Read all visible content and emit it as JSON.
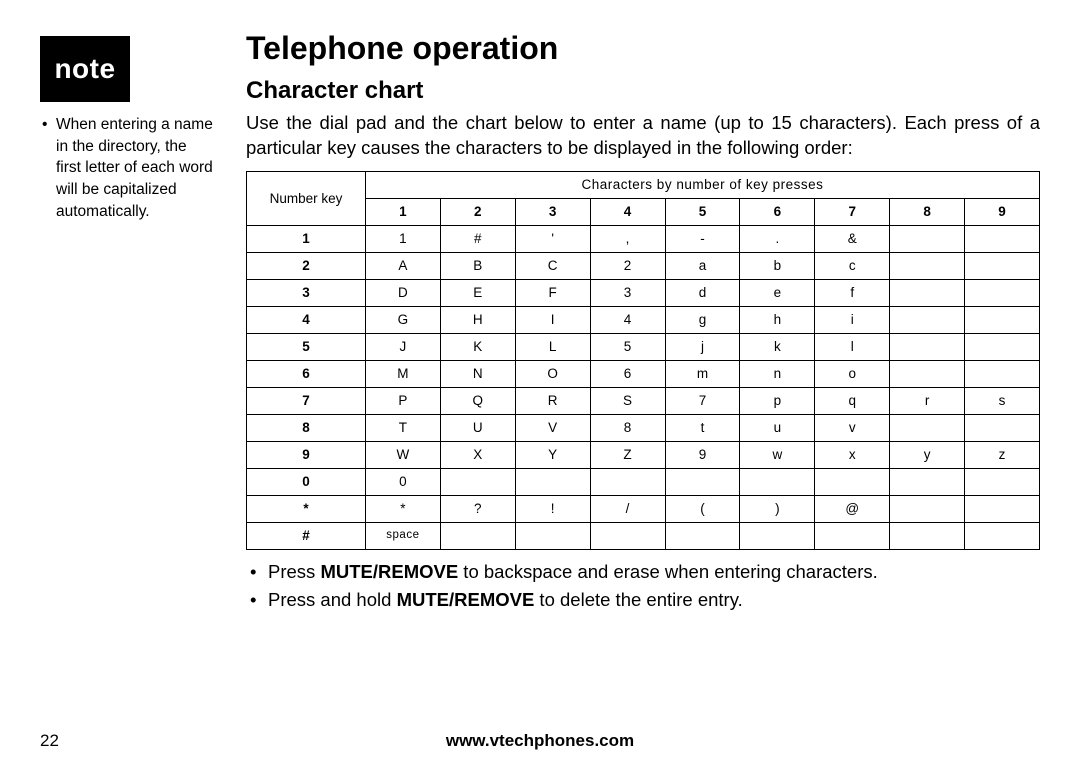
{
  "sidebar": {
    "badge_label": "note",
    "note_text": "When entering a name in the directory, the first letter of each word will be capitalized automatically."
  },
  "main": {
    "title": "Telephone operation",
    "subtitle": "Character chart",
    "intro": "Use the dial pad and the chart below to enter a name (up to 15 characters). Each press of a particular key causes the characters to be displayed in the following order:"
  },
  "table": {
    "corner_label": "Number key",
    "spanning_header": "Characters by number of key presses",
    "press_headers": [
      "1",
      "2",
      "3",
      "4",
      "5",
      "6",
      "7",
      "8",
      "9"
    ],
    "rows": [
      {
        "key": "1",
        "cells": [
          "1",
          "#",
          "'",
          ",",
          "-",
          ".",
          "&",
          "",
          ""
        ]
      },
      {
        "key": "2",
        "cells": [
          "A",
          "B",
          "C",
          "2",
          "a",
          "b",
          "c",
          "",
          ""
        ]
      },
      {
        "key": "3",
        "cells": [
          "D",
          "E",
          "F",
          "3",
          "d",
          "e",
          "f",
          "",
          ""
        ]
      },
      {
        "key": "4",
        "cells": [
          "G",
          "H",
          "I",
          "4",
          "g",
          "h",
          "i",
          "",
          ""
        ]
      },
      {
        "key": "5",
        "cells": [
          "J",
          "K",
          "L",
          "5",
          "j",
          "k",
          "l",
          "",
          ""
        ]
      },
      {
        "key": "6",
        "cells": [
          "M",
          "N",
          "O",
          "6",
          "m",
          "n",
          "o",
          "",
          ""
        ]
      },
      {
        "key": "7",
        "cells": [
          "P",
          "Q",
          "R",
          "S",
          "7",
          "p",
          "q",
          "r",
          "s"
        ]
      },
      {
        "key": "8",
        "cells": [
          "T",
          "U",
          "V",
          "8",
          "t",
          "u",
          "v",
          "",
          ""
        ]
      },
      {
        "key": "9",
        "cells": [
          "W",
          "X",
          "Y",
          "Z",
          "9",
          "w",
          "x",
          "y",
          "z"
        ]
      },
      {
        "key": "0",
        "cells": [
          "0",
          "",
          "",
          "",
          "",
          "",
          "",
          "",
          ""
        ]
      },
      {
        "key": "*",
        "cells": [
          "*",
          "?",
          "!",
          "/",
          "(",
          ")",
          "@",
          "",
          ""
        ]
      },
      {
        "key": "#",
        "cells": [
          "space",
          "",
          "",
          "",
          "",
          "",
          "",
          "",
          ""
        ]
      }
    ],
    "border_color": "#000000",
    "cell_fontsize": 13.5
  },
  "bullets": {
    "b1_pre": "Press ",
    "b1_bold": "MUTE/REMOVE",
    "b1_post": " to backspace and erase when entering characters.",
    "b2_pre": "Press and hold ",
    "b2_bold": "MUTE/REMOVE",
    "b2_post": " to delete the entire entry."
  },
  "footer": {
    "page_number": "22",
    "url": "www.vtechphones.com"
  },
  "colors": {
    "text": "#000000",
    "background": "#ffffff",
    "badge_bg": "#000000",
    "badge_fg": "#ffffff"
  }
}
